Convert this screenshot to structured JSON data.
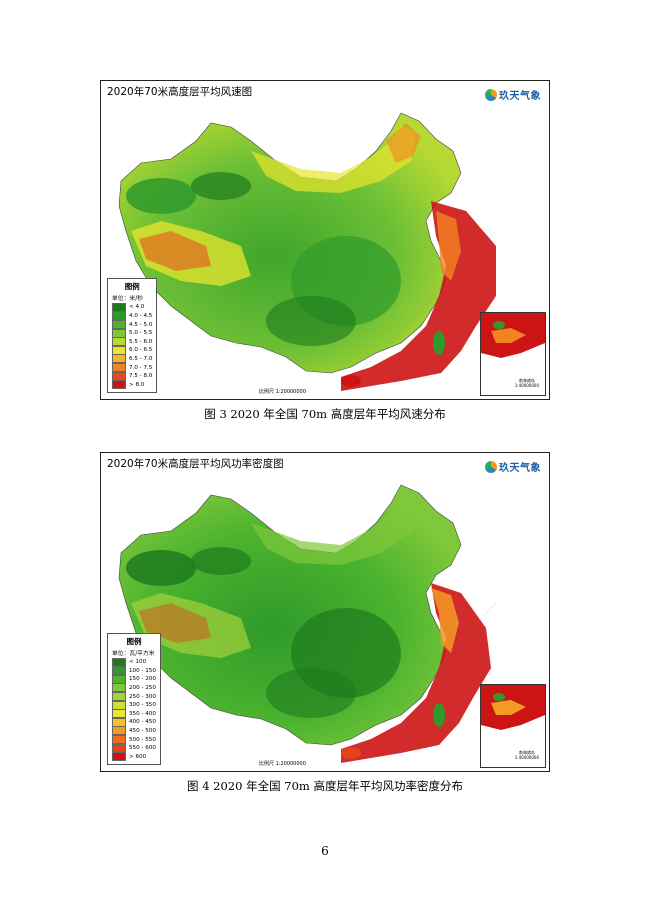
{
  "figures": [
    {
      "title": "2020年70米高度层平均风速图",
      "caption": "图 3    2020 年全国 70m 高度层年平均风速分布",
      "legend": {
        "title": "图例",
        "unit": "单位：米/秒",
        "items": [
          {
            "label": "< 4.0",
            "color": "#1e7a1e"
          },
          {
            "label": "4.0 - 4.5",
            "color": "#2f9a2a"
          },
          {
            "label": "4.5 - 5.0",
            "color": "#4bb32e"
          },
          {
            "label": "5.0 - 5.5",
            "color": "#7fc83a"
          },
          {
            "label": "5.5 - 6.0",
            "color": "#b6d934"
          },
          {
            "label": "6.0 - 6.5",
            "color": "#e8e62e"
          },
          {
            "label": "6.5 - 7.0",
            "color": "#f5b52a"
          },
          {
            "label": "7.0 - 7.5",
            "color": "#f28322"
          },
          {
            "label": "7.5 - 8.0",
            "color": "#e8481c"
          },
          {
            "label": "> 8.0",
            "color": "#cc1414"
          }
        ]
      },
      "scale": "比例尺 1:20000000",
      "inset_label": "南海诸岛\n1:40000000"
    },
    {
      "title": "2020年70米高度层平均风功率密度图",
      "caption": "图 4    2020 年全国 70m 高度层年平均风功率密度分布",
      "legend": {
        "title": "图例",
        "unit": "单位：瓦/平方米",
        "items": [
          {
            "label": "< 100",
            "color": "#1e7a1e"
          },
          {
            "label": "100 - 150",
            "color": "#2f9a2a"
          },
          {
            "label": "150 - 200",
            "color": "#4bb32e"
          },
          {
            "label": "200 - 250",
            "color": "#7fc83a"
          },
          {
            "label": "250 - 300",
            "color": "#a4d23a"
          },
          {
            "label": "300 - 350",
            "color": "#cfe032"
          },
          {
            "label": "350 - 400",
            "color": "#eee52e"
          },
          {
            "label": "400 - 450",
            "color": "#f6c02a"
          },
          {
            "label": "450 - 500",
            "color": "#f39a24"
          },
          {
            "label": "500 - 550",
            "color": "#ee701e"
          },
          {
            "label": "550 - 600",
            "color": "#e2431a"
          },
          {
            "label": "> 600",
            "color": "#cc1414"
          }
        ]
      },
      "scale": "比例尺 1:20000000",
      "inset_label": "南海诸岛\n1:40000000"
    }
  ],
  "logo_text": "玖天气象",
  "page_number": "6"
}
